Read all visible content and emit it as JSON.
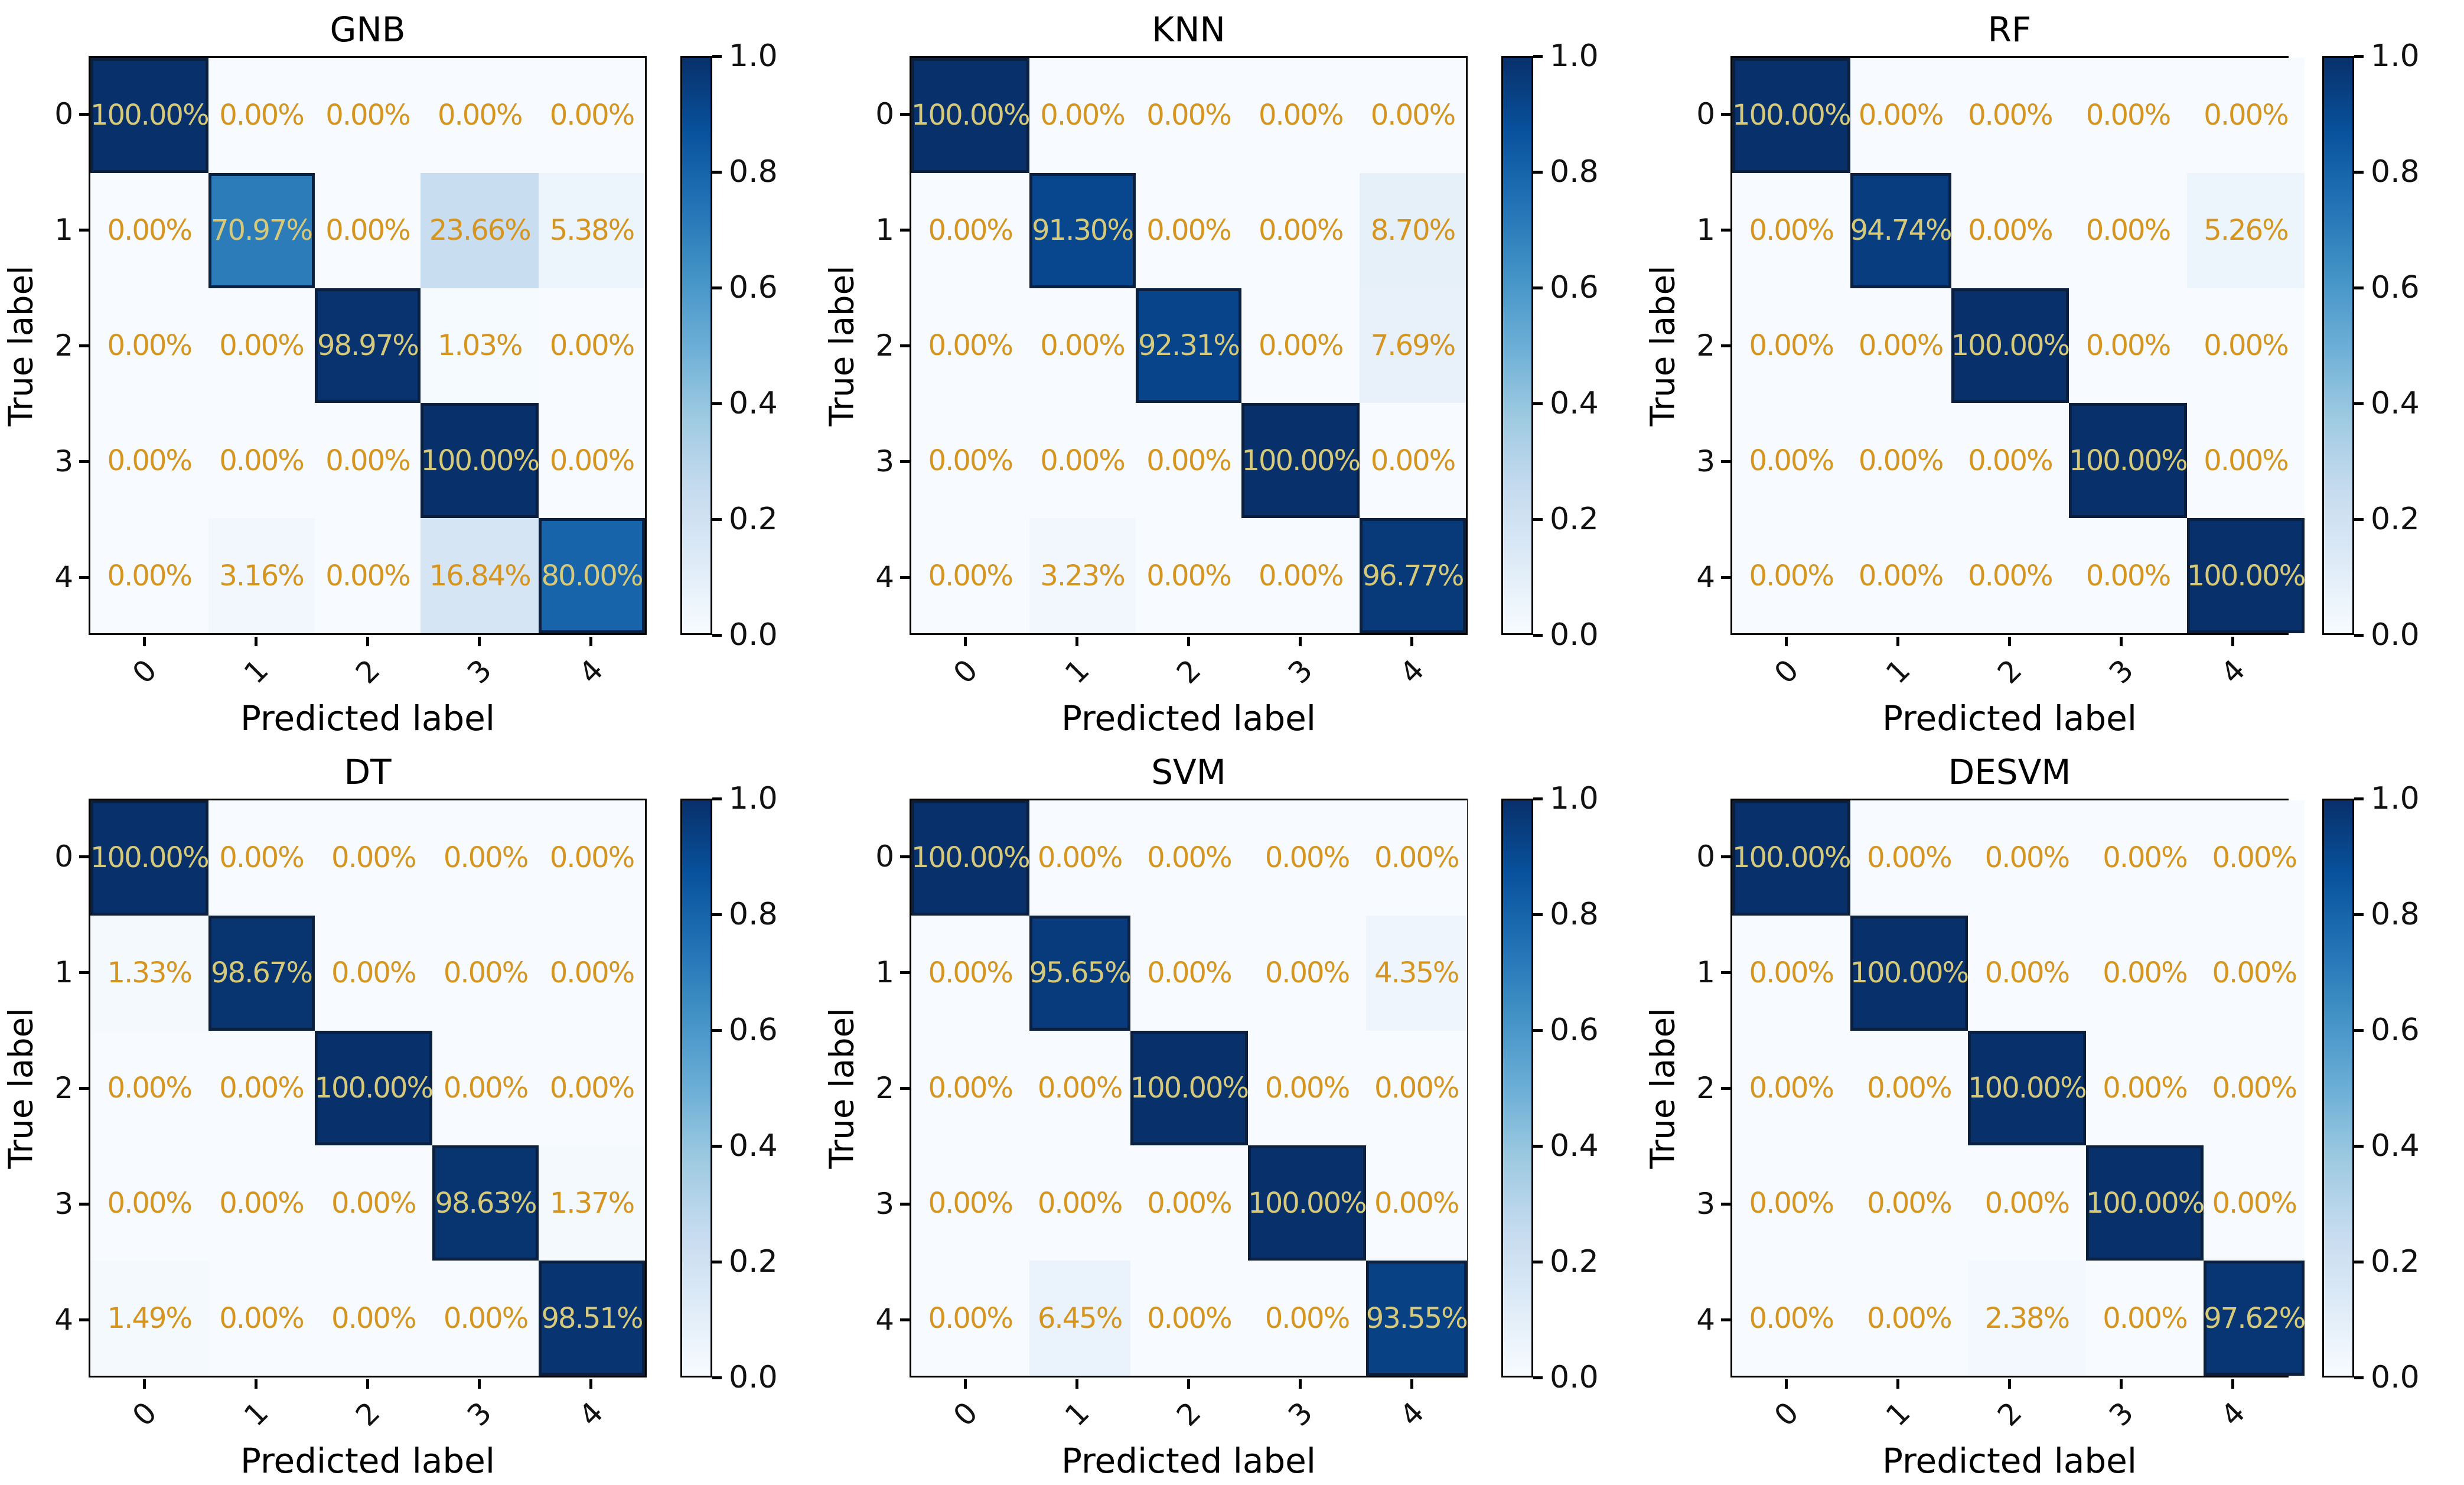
{
  "layout": {
    "rows": 2,
    "cols": 3
  },
  "colors": {
    "colormap_low": "#f7fbff",
    "colormap_high": "#08306b",
    "cell_text_on_light": "#d6951f",
    "cell_text_on_dark": "#d6ca7a",
    "axis_text": "#000000"
  },
  "chart_data": [
    {
      "type": "heatmap",
      "title": "GNB",
      "xlabel": "Predicted label",
      "ylabel": "True label",
      "x_ticklabels": [
        "0",
        "1",
        "2",
        "3",
        "4"
      ],
      "y_ticklabels": [
        "0",
        "1",
        "2",
        "3",
        "4"
      ],
      "cell_labels": [
        [
          "100.00%",
          "0.00%",
          "0.00%",
          "0.00%",
          "0.00%"
        ],
        [
          "0.00%",
          "70.97%",
          "0.00%",
          "23.66%",
          "5.38%"
        ],
        [
          "0.00%",
          "0.00%",
          "98.97%",
          "1.03%",
          "0.00%"
        ],
        [
          "0.00%",
          "0.00%",
          "0.00%",
          "100.00%",
          "0.00%"
        ],
        [
          "0.00%",
          "3.16%",
          "0.00%",
          "16.84%",
          "80.00%"
        ]
      ],
      "values_percent": [
        [
          100.0,
          0.0,
          0.0,
          0.0,
          0.0
        ],
        [
          0.0,
          70.97,
          0.0,
          23.66,
          5.38
        ],
        [
          0.0,
          0.0,
          98.97,
          1.03,
          0.0
        ],
        [
          0.0,
          0.0,
          0.0,
          100.0,
          0.0
        ],
        [
          0.0,
          3.16,
          0.0,
          16.84,
          80.0
        ]
      ],
      "colormap": "Blues",
      "colorbar_ticks": [
        "1.0",
        "0.8",
        "0.6",
        "0.4",
        "0.2",
        "0.0"
      ],
      "colorbar_range": [
        0.0,
        1.0
      ]
    },
    {
      "type": "heatmap",
      "title": "KNN",
      "xlabel": "Predicted label",
      "ylabel": "True label",
      "x_ticklabels": [
        "0",
        "1",
        "2",
        "3",
        "4"
      ],
      "y_ticklabels": [
        "0",
        "1",
        "2",
        "3",
        "4"
      ],
      "cell_labels": [
        [
          "100.00%",
          "0.00%",
          "0.00%",
          "0.00%",
          "0.00%"
        ],
        [
          "0.00%",
          "91.30%",
          "0.00%",
          "0.00%",
          "8.70%"
        ],
        [
          "0.00%",
          "0.00%",
          "92.31%",
          "0.00%",
          "7.69%"
        ],
        [
          "0.00%",
          "0.00%",
          "0.00%",
          "100.00%",
          "0.00%"
        ],
        [
          "0.00%",
          "3.23%",
          "0.00%",
          "0.00%",
          "96.77%"
        ]
      ],
      "values_percent": [
        [
          100.0,
          0.0,
          0.0,
          0.0,
          0.0
        ],
        [
          0.0,
          91.3,
          0.0,
          0.0,
          8.7
        ],
        [
          0.0,
          0.0,
          92.31,
          0.0,
          7.69
        ],
        [
          0.0,
          0.0,
          0.0,
          100.0,
          0.0
        ],
        [
          0.0,
          3.23,
          0.0,
          0.0,
          96.77
        ]
      ],
      "colormap": "Blues",
      "colorbar_ticks": [
        "1.0",
        "0.8",
        "0.6",
        "0.4",
        "0.2",
        "0.0"
      ],
      "colorbar_range": [
        0.0,
        1.0
      ]
    },
    {
      "type": "heatmap",
      "title": "RF",
      "xlabel": "Predicted label",
      "ylabel": "True label",
      "x_ticklabels": [
        "0",
        "1",
        "2",
        "3",
        "4"
      ],
      "y_ticklabels": [
        "0",
        "1",
        "2",
        "3",
        "4"
      ],
      "cell_labels": [
        [
          "100.00%",
          "0.00%",
          "0.00%",
          "0.00%",
          "0.00%"
        ],
        [
          "0.00%",
          "94.74%",
          "0.00%",
          "0.00%",
          "5.26%"
        ],
        [
          "0.00%",
          "0.00%",
          "100.00%",
          "0.00%",
          "0.00%"
        ],
        [
          "0.00%",
          "0.00%",
          "0.00%",
          "100.00%",
          "0.00%"
        ],
        [
          "0.00%",
          "0.00%",
          "0.00%",
          "0.00%",
          "100.00%"
        ]
      ],
      "values_percent": [
        [
          100.0,
          0.0,
          0.0,
          0.0,
          0.0
        ],
        [
          0.0,
          94.74,
          0.0,
          0.0,
          5.26
        ],
        [
          0.0,
          0.0,
          100.0,
          0.0,
          0.0
        ],
        [
          0.0,
          0.0,
          0.0,
          100.0,
          0.0
        ],
        [
          0.0,
          0.0,
          0.0,
          0.0,
          100.0
        ]
      ],
      "colormap": "Blues",
      "colorbar_ticks": [
        "1.0",
        "0.8",
        "0.6",
        "0.4",
        "0.2",
        "0.0"
      ],
      "colorbar_range": [
        0.0,
        1.0
      ]
    },
    {
      "type": "heatmap",
      "title": "DT",
      "xlabel": "Predicted label",
      "ylabel": "True label",
      "x_ticklabels": [
        "0",
        "1",
        "2",
        "3",
        "4"
      ],
      "y_ticklabels": [
        "0",
        "1",
        "2",
        "3",
        "4"
      ],
      "cell_labels": [
        [
          "100.00%",
          "0.00%",
          "0.00%",
          "0.00%",
          "0.00%"
        ],
        [
          "1.33%",
          "98.67%",
          "0.00%",
          "0.00%",
          "0.00%"
        ],
        [
          "0.00%",
          "0.00%",
          "100.00%",
          "0.00%",
          "0.00%"
        ],
        [
          "0.00%",
          "0.00%",
          "0.00%",
          "98.63%",
          "1.37%"
        ],
        [
          "1.49%",
          "0.00%",
          "0.00%",
          "0.00%",
          "98.51%"
        ]
      ],
      "values_percent": [
        [
          100.0,
          0.0,
          0.0,
          0.0,
          0.0
        ],
        [
          1.33,
          98.67,
          0.0,
          0.0,
          0.0
        ],
        [
          0.0,
          0.0,
          100.0,
          0.0,
          0.0
        ],
        [
          0.0,
          0.0,
          0.0,
          98.63,
          1.37
        ],
        [
          1.49,
          0.0,
          0.0,
          0.0,
          98.51
        ]
      ],
      "colormap": "Blues",
      "colorbar_ticks": [
        "1.0",
        "0.8",
        "0.6",
        "0.4",
        "0.2",
        "0.0"
      ],
      "colorbar_range": [
        0.0,
        1.0
      ]
    },
    {
      "type": "heatmap",
      "title": "SVM",
      "xlabel": "Predicted label",
      "ylabel": "True label",
      "x_ticklabels": [
        "0",
        "1",
        "2",
        "3",
        "4"
      ],
      "y_ticklabels": [
        "0",
        "1",
        "2",
        "3",
        "4"
      ],
      "cell_labels": [
        [
          "100.00%",
          "0.00%",
          "0.00%",
          "0.00%",
          "0.00%"
        ],
        [
          "0.00%",
          "95.65%",
          "0.00%",
          "0.00%",
          "4.35%"
        ],
        [
          "0.00%",
          "0.00%",
          "100.00%",
          "0.00%",
          "0.00%"
        ],
        [
          "0.00%",
          "0.00%",
          "0.00%",
          "100.00%",
          "0.00%"
        ],
        [
          "0.00%",
          "6.45%",
          "0.00%",
          "0.00%",
          "93.55%"
        ]
      ],
      "values_percent": [
        [
          100.0,
          0.0,
          0.0,
          0.0,
          0.0
        ],
        [
          0.0,
          95.65,
          0.0,
          0.0,
          4.35
        ],
        [
          0.0,
          0.0,
          100.0,
          0.0,
          0.0
        ],
        [
          0.0,
          0.0,
          0.0,
          100.0,
          0.0
        ],
        [
          0.0,
          6.45,
          0.0,
          0.0,
          93.55
        ]
      ],
      "colormap": "Blues",
      "colorbar_ticks": [
        "1.0",
        "0.8",
        "0.6",
        "0.4",
        "0.2",
        "0.0"
      ],
      "colorbar_range": [
        0.0,
        1.0
      ]
    },
    {
      "type": "heatmap",
      "title": "DESVM",
      "xlabel": "Predicted label",
      "ylabel": "True label",
      "x_ticklabels": [
        "0",
        "1",
        "2",
        "3",
        "4"
      ],
      "y_ticklabels": [
        "0",
        "1",
        "2",
        "3",
        "4"
      ],
      "cell_labels": [
        [
          "100.00%",
          "0.00%",
          "0.00%",
          "0.00%",
          "0.00%"
        ],
        [
          "0.00%",
          "100.00%",
          "0.00%",
          "0.00%",
          "0.00%"
        ],
        [
          "0.00%",
          "0.00%",
          "100.00%",
          "0.00%",
          "0.00%"
        ],
        [
          "0.00%",
          "0.00%",
          "0.00%",
          "100.00%",
          "0.00%"
        ],
        [
          "0.00%",
          "0.00%",
          "2.38%",
          "0.00%",
          "97.62%"
        ]
      ],
      "values_percent": [
        [
          100.0,
          0.0,
          0.0,
          0.0,
          0.0
        ],
        [
          0.0,
          100.0,
          0.0,
          0.0,
          0.0
        ],
        [
          0.0,
          0.0,
          100.0,
          0.0,
          0.0
        ],
        [
          0.0,
          0.0,
          0.0,
          100.0,
          0.0
        ],
        [
          0.0,
          0.0,
          2.38,
          0.0,
          97.62
        ]
      ],
      "colormap": "Blues",
      "colorbar_ticks": [
        "1.0",
        "0.8",
        "0.6",
        "0.4",
        "0.2",
        "0.0"
      ],
      "colorbar_range": [
        0.0,
        1.0
      ]
    }
  ]
}
